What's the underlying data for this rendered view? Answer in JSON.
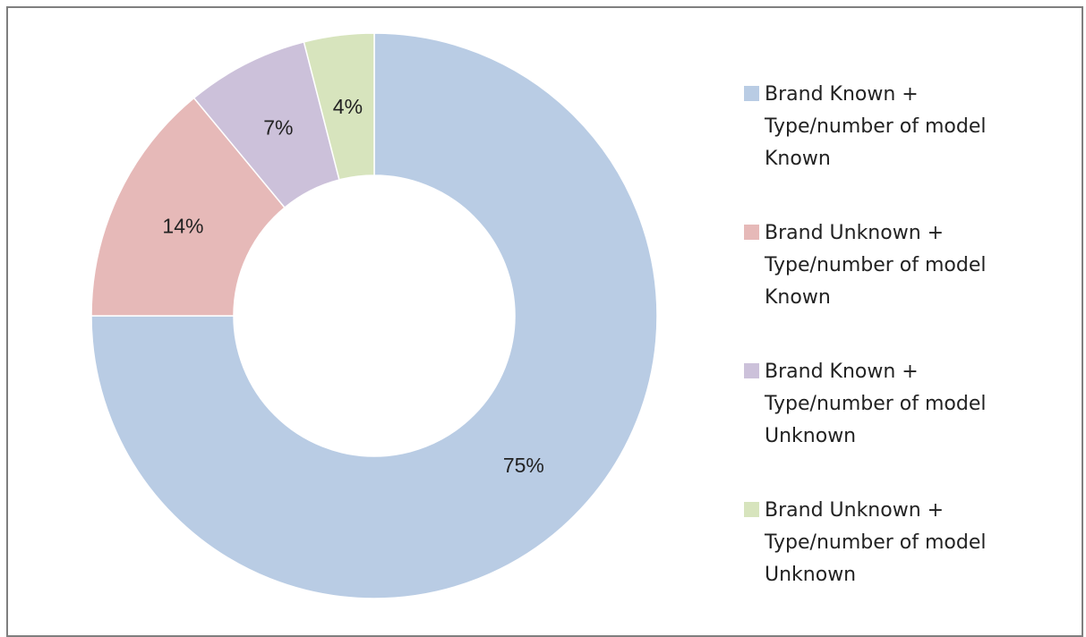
{
  "chart_data": {
    "type": "pie",
    "donut": true,
    "legend_position": "right",
    "slices": [
      {
        "label": "Brand Known +\nType/number of model\nKnown",
        "value": 75,
        "display": "75%",
        "color": "#b9cce4"
      },
      {
        "label": "Brand Unknown +\nType/number of model\nKnown",
        "value": 14,
        "display": "14%",
        "color": "#e6b9b8"
      },
      {
        "label": "Brand Known +\nType/number of model\nUnknown",
        "value": 7,
        "display": "7%",
        "color": "#ccc1da"
      },
      {
        "label": "Brand Unknown +\nType/number of model\nUnknown",
        "value": 4,
        "display": "4%",
        "color": "#d7e4bd"
      }
    ]
  }
}
